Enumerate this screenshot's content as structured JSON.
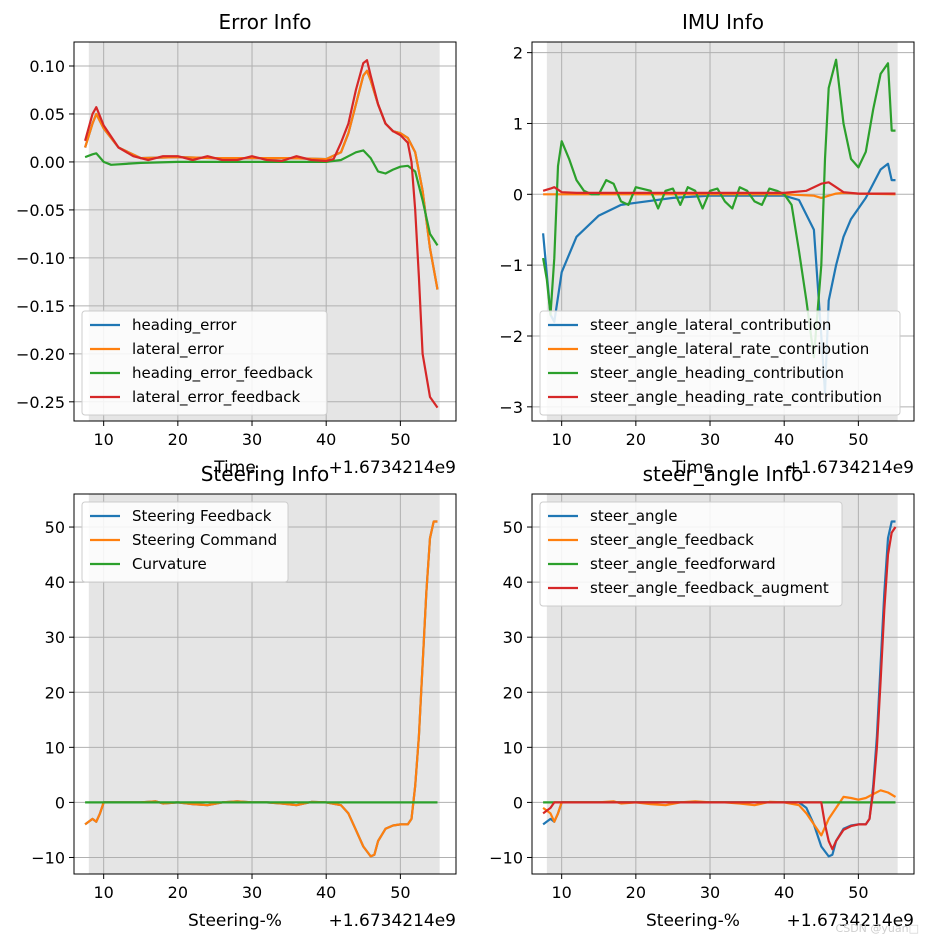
{
  "watermark": "CSDN @yuan□",
  "chart_data": [
    {
      "type": "line",
      "title": "Error Info",
      "xlabel": "Time",
      "x_offset_label": "+1.6734214e9",
      "xlim": [
        6,
        57.5
      ],
      "ylim": [
        -0.27,
        0.125
      ],
      "xticks": [
        10,
        20,
        30,
        40,
        50
      ],
      "yticks": [
        0.1,
        0.05,
        0.0,
        -0.05,
        -0.1,
        -0.15,
        -0.2,
        -0.25
      ],
      "ytick_labels": [
        "0.10",
        "0.05",
        "0.00",
        "−0.05",
        "−0.10",
        "−0.15",
        "−0.20",
        "−0.25"
      ],
      "shade": [
        8,
        55.3
      ],
      "legend_position": "lower-left",
      "series": [
        {
          "name": "heading_error",
          "color": "#1f77b4",
          "x": [
            7.5,
            8.5,
            9,
            10,
            12,
            15,
            20,
            25,
            30,
            35,
            40,
            42,
            43,
            44,
            45,
            45.5,
            46,
            47,
            48,
            49,
            50,
            51,
            52,
            53,
            54,
            55
          ],
          "y": [
            0.015,
            0.04,
            0.05,
            0.035,
            0.015,
            0.004,
            0.005,
            0.004,
            0.004,
            0.004,
            0.003,
            0.01,
            0.03,
            0.06,
            0.09,
            0.095,
            0.085,
            0.06,
            0.04,
            0.032,
            0.03,
            0.025,
            0.01,
            -0.03,
            -0.09,
            -0.133
          ]
        },
        {
          "name": "lateral_error",
          "color": "#ff7f0e",
          "x": [
            7.5,
            8.5,
            9,
            10,
            12,
            15,
            20,
            25,
            30,
            35,
            40,
            42,
            43,
            44,
            45,
            45.5,
            46,
            47,
            48,
            49,
            50,
            51,
            52,
            53,
            54,
            55
          ],
          "y": [
            0.015,
            0.04,
            0.05,
            0.035,
            0.015,
            0.004,
            0.005,
            0.004,
            0.004,
            0.004,
            0.003,
            0.01,
            0.03,
            0.06,
            0.09,
            0.095,
            0.085,
            0.06,
            0.04,
            0.032,
            0.03,
            0.025,
            0.01,
            -0.03,
            -0.09,
            -0.133
          ]
        },
        {
          "name": "heading_error_feedback",
          "color": "#2ca02c",
          "x": [
            7.5,
            8.5,
            9,
            10,
            11,
            15,
            20,
            25,
            30,
            35,
            40,
            42,
            43,
            44,
            45,
            46,
            47,
            48,
            49,
            50,
            51,
            52,
            53,
            54,
            55
          ],
          "y": [
            0.005,
            0.008,
            0.009,
            0.0,
            -0.003,
            -0.001,
            0.0,
            0.0,
            0.0,
            0.0,
            0.0,
            0.002,
            0.006,
            0.01,
            0.012,
            0.004,
            -0.01,
            -0.012,
            -0.008,
            -0.005,
            -0.004,
            -0.01,
            -0.04,
            -0.075,
            -0.087
          ]
        },
        {
          "name": "lateral_error_feedback",
          "color": "#d62728",
          "x": [
            7.5,
            8.5,
            9,
            10,
            12,
            14,
            16,
            18,
            20,
            22,
            24,
            26,
            28,
            30,
            32,
            34,
            36,
            38,
            40,
            41,
            42,
            43,
            44,
            45,
            45.5,
            46,
            47,
            48,
            49,
            50,
            51,
            51.5,
            52,
            52.5,
            53,
            54,
            55
          ],
          "y": [
            0.022,
            0.05,
            0.057,
            0.038,
            0.015,
            0.006,
            0.002,
            0.006,
            0.006,
            0.002,
            0.006,
            0.002,
            0.002,
            0.006,
            0.002,
            0.001,
            0.006,
            0.002,
            0.001,
            0.003,
            0.02,
            0.04,
            0.075,
            0.103,
            0.106,
            0.09,
            0.06,
            0.04,
            0.032,
            0.028,
            0.02,
            0.0,
            -0.05,
            -0.12,
            -0.2,
            -0.245,
            -0.256
          ]
        }
      ]
    },
    {
      "type": "line",
      "title": "IMU Info",
      "xlabel": "Time",
      "x_offset_label": "+1.6734214e9",
      "xlim": [
        6,
        57.5
      ],
      "ylim": [
        -3.2,
        2.15
      ],
      "xticks": [
        10,
        20,
        30,
        40,
        50
      ],
      "yticks": [
        2,
        1,
        0,
        -1,
        -2,
        -3
      ],
      "ytick_labels": [
        "2",
        "1",
        "0",
        "−1",
        "−2",
        "−3"
      ],
      "shade": [
        8,
        55.3
      ],
      "legend_position": "lower-center",
      "series": [
        {
          "name": "steer_angle_lateral_contribution",
          "color": "#1f77b4",
          "x": [
            7.5,
            8.5,
            9,
            10,
            12,
            15,
            18,
            20,
            25,
            30,
            35,
            40,
            42,
            44,
            45,
            45.5,
            46,
            47,
            48,
            49,
            50,
            51,
            52,
            53,
            54,
            54.5,
            55
          ],
          "y": [
            -0.55,
            -1.7,
            -1.8,
            -1.1,
            -0.6,
            -0.3,
            -0.15,
            -0.12,
            -0.05,
            -0.02,
            -0.02,
            -0.02,
            -0.08,
            -0.5,
            -2.0,
            -2.8,
            -1.5,
            -1.0,
            -0.6,
            -0.35,
            -0.2,
            -0.05,
            0.15,
            0.35,
            0.43,
            0.2,
            0.2
          ]
        },
        {
          "name": "steer_angle_lateral_rate_contribution",
          "color": "#ff7f0e",
          "x": [
            7.5,
            10,
            20,
            30,
            40,
            44,
            45,
            46,
            47,
            48,
            50,
            55
          ],
          "y": [
            0.0,
            0.0,
            0.0,
            0.0,
            0.0,
            -0.02,
            -0.05,
            -0.02,
            0.01,
            0.02,
            0.01,
            0.0
          ]
        },
        {
          "name": "steer_angle_heading_contribution",
          "color": "#2ca02c",
          "x": [
            7.5,
            8,
            8.5,
            9,
            9.5,
            10,
            11,
            12,
            13,
            14,
            15,
            16,
            17,
            18,
            19,
            20,
            22,
            23,
            24,
            25,
            26,
            27,
            28,
            29,
            30,
            31,
            32,
            33,
            34,
            35,
            36,
            37,
            38,
            39,
            40,
            41,
            42,
            43,
            44,
            45,
            45.5,
            46,
            47,
            48,
            49,
            50,
            51,
            52,
            53,
            54,
            54.5,
            55
          ],
          "y": [
            -0.9,
            -1.2,
            -1.7,
            -0.9,
            0.4,
            0.75,
            0.5,
            0.2,
            0.05,
            0.0,
            0.0,
            0.2,
            0.15,
            -0.1,
            -0.15,
            0.1,
            0.05,
            -0.2,
            0.05,
            0.08,
            -0.15,
            0.1,
            0.05,
            -0.2,
            0.05,
            0.08,
            -0.1,
            -0.2,
            0.1,
            0.05,
            -0.1,
            -0.15,
            0.08,
            0.05,
            0.0,
            -0.15,
            -0.8,
            -1.5,
            -2.3,
            -1.0,
            0.5,
            1.5,
            1.9,
            1.0,
            0.5,
            0.38,
            0.6,
            1.2,
            1.7,
            1.85,
            0.9,
            0.9
          ]
        },
        {
          "name": "steer_angle_heading_rate_contribution",
          "color": "#d62728",
          "x": [
            7.5,
            8.5,
            9,
            10,
            12,
            15,
            20,
            25,
            30,
            35,
            40,
            43,
            44,
            45,
            46,
            47,
            48,
            50,
            55
          ],
          "y": [
            0.05,
            0.08,
            0.1,
            0.03,
            0.02,
            0.02,
            0.02,
            0.02,
            0.02,
            0.02,
            0.02,
            0.05,
            0.1,
            0.15,
            0.17,
            0.1,
            0.03,
            0.01,
            0.01
          ]
        }
      ]
    },
    {
      "type": "line",
      "title": "Steering Info",
      "xlabel": "Steering-%",
      "x_offset_label": "+1.6734214e9",
      "xlim": [
        6,
        57.5
      ],
      "ylim": [
        -13,
        56
      ],
      "xticks": [
        10,
        20,
        30,
        40,
        50
      ],
      "yticks": [
        50,
        40,
        30,
        20,
        10,
        0,
        -10
      ],
      "ytick_labels": [
        "50",
        "40",
        "30",
        "20",
        "10",
        "0",
        "−10"
      ],
      "shade": [
        8,
        55.3
      ],
      "legend_position": "upper-left",
      "series": [
        {
          "name": "Steering Feedback",
          "color": "#1f77b4",
          "x": [
            7.5,
            8.5,
            9,
            9.5,
            10,
            11,
            15,
            17,
            18,
            20,
            22,
            24,
            26,
            28,
            30,
            32,
            34,
            36,
            38,
            40,
            42,
            43,
            44,
            45,
            46,
            46.5,
            47,
            48,
            49,
            50,
            51,
            51.5,
            52,
            52.5,
            53,
            53.5,
            54,
            54.5,
            55
          ],
          "y": [
            -4,
            -3,
            -3.5,
            -2,
            0,
            0,
            0,
            0.2,
            -0.2,
            0,
            -0.3,
            -0.5,
            0,
            0.2,
            0,
            0,
            -0.2,
            -0.5,
            0.1,
            0,
            -0.5,
            -2,
            -5,
            -8,
            -9.8,
            -9.5,
            -7,
            -4.8,
            -4.2,
            -4,
            -4,
            -3,
            3,
            12,
            25,
            38,
            48,
            51,
            51
          ]
        },
        {
          "name": "Steering Command",
          "color": "#ff7f0e",
          "x": [
            7.5,
            8.5,
            9,
            9.5,
            10,
            11,
            15,
            17,
            18,
            20,
            22,
            24,
            26,
            28,
            30,
            32,
            34,
            36,
            38,
            40,
            42,
            43,
            44,
            45,
            46,
            46.5,
            47,
            48,
            49,
            50,
            51,
            51.5,
            52,
            52.5,
            53,
            53.5,
            54,
            54.5,
            55
          ],
          "y": [
            -4,
            -3,
            -3.5,
            -2,
            0,
            0,
            0,
            0.2,
            -0.2,
            0,
            -0.3,
            -0.5,
            0,
            0.2,
            0,
            0,
            -0.2,
            -0.5,
            0.1,
            0,
            -0.5,
            -2,
            -5,
            -8,
            -9.8,
            -9.5,
            -7,
            -4.8,
            -4.2,
            -4,
            -4,
            -3,
            3,
            12,
            25,
            38,
            48,
            51,
            51
          ]
        },
        {
          "name": "Curvature",
          "color": "#2ca02c",
          "x": [
            7.5,
            55
          ],
          "y": [
            0,
            0
          ]
        }
      ]
    },
    {
      "type": "line",
      "title": "steer_angle Info",
      "xlabel": "Steering-%",
      "x_offset_label": "+1.6734214e9",
      "xlim": [
        6,
        57.5
      ],
      "ylim": [
        -13,
        56
      ],
      "xticks": [
        10,
        20,
        30,
        40,
        50
      ],
      "yticks": [
        50,
        40,
        30,
        20,
        10,
        0,
        -10
      ],
      "ytick_labels": [
        "50",
        "40",
        "30",
        "20",
        "10",
        "0",
        "−10"
      ],
      "shade": [
        8,
        55.3
      ],
      "legend_position": "upper-left",
      "series": [
        {
          "name": "steer_angle",
          "color": "#1f77b4",
          "x": [
            7.5,
            8.5,
            9,
            9.5,
            10,
            11,
            15,
            20,
            25,
            30,
            35,
            40,
            42,
            43,
            44,
            45,
            46,
            46.5,
            47,
            48,
            49,
            50,
            51,
            51.5,
            52,
            52.5,
            53,
            53.5,
            54,
            54.5,
            55
          ],
          "y": [
            -4,
            -3,
            -3.5,
            -2,
            0,
            0,
            0,
            0,
            0,
            0,
            0,
            0,
            0,
            -1,
            -4,
            -8,
            -9.8,
            -9.5,
            -7,
            -4.8,
            -4.2,
            -4,
            -4,
            -3,
            3,
            12,
            25,
            38,
            48,
            51,
            51
          ]
        },
        {
          "name": "steer_angle_feedback",
          "color": "#ff7f0e",
          "x": [
            7.5,
            8.5,
            9,
            9.5,
            10,
            11,
            15,
            17,
            18,
            20,
            22,
            24,
            26,
            28,
            30,
            32,
            34,
            36,
            38,
            40,
            42,
            43,
            44,
            45,
            46,
            47,
            48,
            49,
            50,
            51,
            52,
            53,
            54,
            55
          ],
          "y": [
            -1,
            -2,
            -3.5,
            -2,
            0,
            0,
            0,
            0.2,
            -0.2,
            0,
            -0.3,
            -0.5,
            0,
            0.2,
            0,
            0,
            -0.2,
            -0.5,
            0.1,
            0,
            -0.5,
            -2,
            -4,
            -6,
            -3,
            -1,
            1,
            0.8,
            0.5,
            0.8,
            1.5,
            2.2,
            1.8,
            1
          ]
        },
        {
          "name": "steer_angle_feedforward",
          "color": "#2ca02c",
          "x": [
            7.5,
            55
          ],
          "y": [
            0,
            0
          ]
        },
        {
          "name": "steer_angle_feedback_augment",
          "color": "#d62728",
          "x": [
            7.5,
            8.5,
            9,
            10,
            15,
            20,
            25,
            30,
            35,
            40,
            44,
            45,
            45.5,
            46,
            46.5,
            47,
            48,
            49,
            50,
            51,
            51.5,
            52,
            52.5,
            53,
            53.5,
            54,
            54.5,
            55
          ],
          "y": [
            -2,
            -1,
            0,
            0,
            0,
            0,
            0,
            0,
            0,
            0,
            0,
            0,
            -4,
            -7,
            -8.5,
            -7,
            -5,
            -4.3,
            -4,
            -4,
            -3,
            2,
            10,
            22,
            35,
            45,
            49,
            50
          ]
        }
      ]
    }
  ]
}
